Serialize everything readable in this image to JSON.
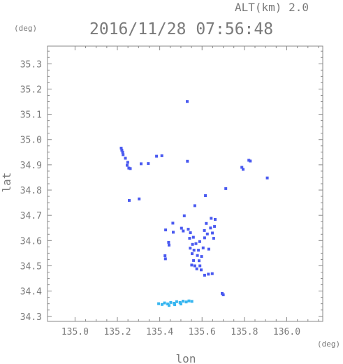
{
  "header": {
    "altitude_label": "ALT(km)  2.0",
    "timestamp": "2016/11/28 07:56:48"
  },
  "chart_data": {
    "type": "scatter",
    "title": "2016/11/28 07:56:48",
    "xlabel": "lon",
    "ylabel": "lat",
    "x_unit": "(deg)",
    "y_unit": "(deg)",
    "xlim": [
      134.87,
      136.17
    ],
    "ylim": [
      34.28,
      35.37
    ],
    "xticks": [
      "135.0",
      "135.2",
      "135.4",
      "135.6",
      "135.8",
      "136.0"
    ],
    "yticks": [
      "34.3",
      "34.4",
      "34.5",
      "34.6",
      "34.7",
      "34.8",
      "34.9",
      "35.0",
      "35.1",
      "35.2",
      "35.3"
    ],
    "grid": false,
    "colors": {
      "frame": "#888888",
      "echo": "#4a5af0",
      "echo_light": "#38b6f0"
    },
    "series": [
      {
        "color": "#4a5af0",
        "points": [
          [
            135.53,
            35.151
          ],
          [
            135.218,
            34.966
          ],
          [
            135.221,
            34.958
          ],
          [
            135.225,
            34.95
          ],
          [
            135.227,
            34.94
          ],
          [
            135.238,
            34.926
          ],
          [
            135.249,
            34.91
          ],
          [
            135.246,
            34.898
          ],
          [
            135.254,
            34.887
          ],
          [
            135.261,
            34.885
          ],
          [
            135.312,
            34.904
          ],
          [
            135.346,
            34.905
          ],
          [
            135.385,
            34.934
          ],
          [
            135.41,
            34.936
          ],
          [
            135.531,
            34.914
          ],
          [
            135.256,
            34.759
          ],
          [
            135.303,
            34.765
          ],
          [
            135.788,
            34.89
          ],
          [
            135.794,
            34.882
          ],
          [
            135.821,
            34.918
          ],
          [
            135.828,
            34.915
          ],
          [
            135.908,
            34.848
          ],
          [
            135.712,
            34.806
          ],
          [
            135.616,
            34.778
          ],
          [
            135.566,
            34.738
          ],
          [
            135.516,
            34.698
          ],
          [
            135.462,
            34.669
          ],
          [
            135.428,
            34.642
          ],
          [
            135.464,
            34.633
          ],
          [
            135.503,
            34.649
          ],
          [
            135.511,
            34.638
          ],
          [
            135.535,
            34.645
          ],
          [
            135.545,
            34.631
          ],
          [
            135.541,
            34.609
          ],
          [
            135.559,
            34.613
          ],
          [
            135.62,
            34.668
          ],
          [
            135.643,
            34.688
          ],
          [
            135.662,
            34.684
          ],
          [
            135.611,
            34.64
          ],
          [
            135.64,
            34.65
          ],
          [
            135.659,
            34.656
          ],
          [
            135.571,
            34.588
          ],
          [
            135.555,
            34.585
          ],
          [
            135.589,
            34.596
          ],
          [
            135.612,
            34.611
          ],
          [
            135.625,
            34.626
          ],
          [
            135.649,
            34.63
          ],
          [
            135.655,
            34.609
          ],
          [
            135.442,
            34.593
          ],
          [
            135.444,
            34.582
          ],
          [
            135.544,
            34.57
          ],
          [
            135.562,
            34.562
          ],
          [
            135.583,
            34.562
          ],
          [
            135.605,
            34.571
          ],
          [
            135.632,
            34.566
          ],
          [
            135.553,
            34.548
          ],
          [
            135.578,
            34.541
          ],
          [
            135.598,
            34.537
          ],
          [
            135.56,
            34.521
          ],
          [
            135.586,
            34.52
          ],
          [
            135.551,
            34.503
          ],
          [
            135.566,
            34.5
          ],
          [
            135.59,
            34.5
          ],
          [
            135.575,
            34.488
          ],
          [
            135.596,
            34.484
          ],
          [
            135.425,
            34.54
          ],
          [
            135.427,
            34.528
          ],
          [
            135.612,
            34.463
          ],
          [
            135.63,
            34.467
          ],
          [
            135.648,
            34.469
          ],
          [
            135.695,
            34.391
          ],
          [
            135.7,
            34.385
          ]
        ]
      },
      {
        "color": "#38b6f0",
        "points": [
          [
            135.395,
            34.35
          ],
          [
            135.411,
            34.347
          ],
          [
            135.423,
            34.353
          ],
          [
            135.438,
            34.349
          ],
          [
            135.452,
            34.355
          ],
          [
            135.468,
            34.352
          ],
          [
            135.48,
            34.358
          ],
          [
            135.496,
            34.355
          ],
          [
            135.51,
            34.36
          ],
          [
            135.525,
            34.357
          ],
          [
            135.538,
            34.361
          ],
          [
            135.552,
            34.359
          ],
          [
            135.444,
            34.343
          ],
          [
            135.471,
            34.346
          ],
          [
            135.5,
            34.349
          ]
        ]
      }
    ]
  }
}
